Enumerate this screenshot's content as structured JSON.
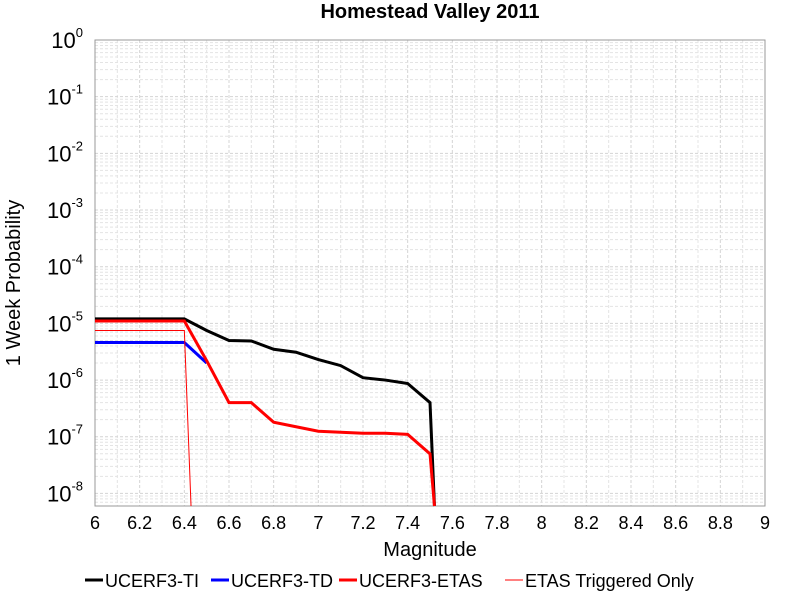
{
  "chart_data": {
    "type": "line",
    "title": "Homestead Valley 2011",
    "xlabel": "Magnitude",
    "ylabel": "1 Week Probability",
    "xlim": [
      6,
      9
    ],
    "ylim": [
      6e-09,
      1
    ],
    "yscale": "log",
    "grid": true,
    "legend_position": "bottom",
    "xticks": [
      "6",
      "6.2",
      "6.4",
      "6.6",
      "6.8",
      "7",
      "7.2",
      "7.4",
      "7.6",
      "7.8",
      "8",
      "8.2",
      "8.4",
      "8.6",
      "8.8",
      "9"
    ],
    "yticks": [
      {
        "base": "10",
        "exp": "0"
      },
      {
        "base": "10",
        "exp": "-1"
      },
      {
        "base": "10",
        "exp": "-2"
      },
      {
        "base": "10",
        "exp": "-3"
      },
      {
        "base": "10",
        "exp": "-4"
      },
      {
        "base": "10",
        "exp": "-5"
      },
      {
        "base": "10",
        "exp": "-6"
      },
      {
        "base": "10",
        "exp": "-7"
      },
      {
        "base": "10",
        "exp": "-8"
      }
    ],
    "series": [
      {
        "name": "UCERF3-TI",
        "color": "#000000",
        "width": 3,
        "points": [
          [
            6.0,
            1.2e-05
          ],
          [
            6.4,
            1.2e-05
          ],
          [
            6.5,
            7.5e-06
          ],
          [
            6.6,
            5e-06
          ],
          [
            6.7,
            4.9e-06
          ],
          [
            6.8,
            3.5e-06
          ],
          [
            6.9,
            3.1e-06
          ],
          [
            7.0,
            2.3e-06
          ],
          [
            7.1,
            1.8e-06
          ],
          [
            7.2,
            1.1e-06
          ],
          [
            7.3,
            1e-06
          ],
          [
            7.4,
            8.7e-07
          ],
          [
            7.5,
            4e-07
          ],
          [
            7.52,
            1e-09
          ]
        ]
      },
      {
        "name": "UCERF3-TD",
        "color": "#0000ff",
        "width": 3,
        "points": [
          [
            6.0,
            4.6e-06
          ],
          [
            6.4,
            4.6e-06
          ],
          [
            6.5,
            2e-06
          ]
        ]
      },
      {
        "name": "UCERF3-ETAS",
        "color": "#ff0000",
        "width": 3,
        "points": [
          [
            6.0,
            1.1e-05
          ],
          [
            6.4,
            1.1e-05
          ],
          [
            6.5,
            2.2e-06
          ],
          [
            6.6,
            4e-07
          ],
          [
            6.7,
            4e-07
          ],
          [
            6.8,
            1.8e-07
          ],
          [
            6.9,
            1.5e-07
          ],
          [
            7.0,
            1.25e-07
          ],
          [
            7.1,
            1.2e-07
          ],
          [
            7.2,
            1.15e-07
          ],
          [
            7.3,
            1.15e-07
          ],
          [
            7.4,
            1.1e-07
          ],
          [
            7.5,
            5e-08
          ],
          [
            7.52,
            1e-09
          ]
        ]
      },
      {
        "name": "ETAS Triggered Only",
        "color": "#ff0000",
        "width": 1,
        "points": [
          [
            6.0,
            7.5e-06
          ],
          [
            6.4,
            7.5e-06
          ],
          [
            6.43,
            1e-09
          ]
        ]
      }
    ]
  }
}
